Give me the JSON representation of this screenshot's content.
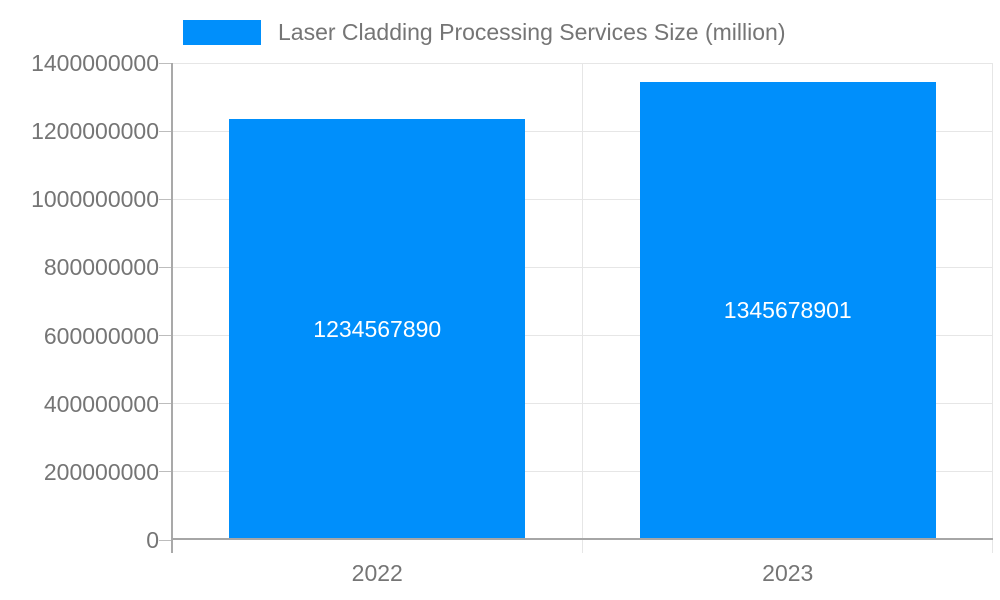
{
  "legend": {
    "label": "Laser Cladding Processing Services Size (million)"
  },
  "colors": {
    "bar": "#008ffb",
    "label_text": "#757575",
    "bar_label_text": "#ffffff",
    "gridline": "#e6e6e6",
    "axis": "#a6a6a6"
  },
  "chart_data": {
    "type": "bar",
    "title": "Laser Cladding Processing Services Size (million)",
    "xlabel": "",
    "ylabel": "",
    "categories": [
      "2022",
      "2023"
    ],
    "series": [
      {
        "name": "Laser Cladding Processing Services Size (million)",
        "values": [
          1234567890,
          1345678901
        ]
      }
    ],
    "bar_labels": [
      "1234567890",
      "1345678901"
    ],
    "ylim": [
      0,
      1400000000
    ],
    "ytick_step": 200000000,
    "yticks": [
      "0",
      "200000000",
      "400000000",
      "600000000",
      "800000000",
      "1000000000",
      "1200000000",
      "1400000000"
    ],
    "grid": true,
    "legend_position": "top"
  }
}
